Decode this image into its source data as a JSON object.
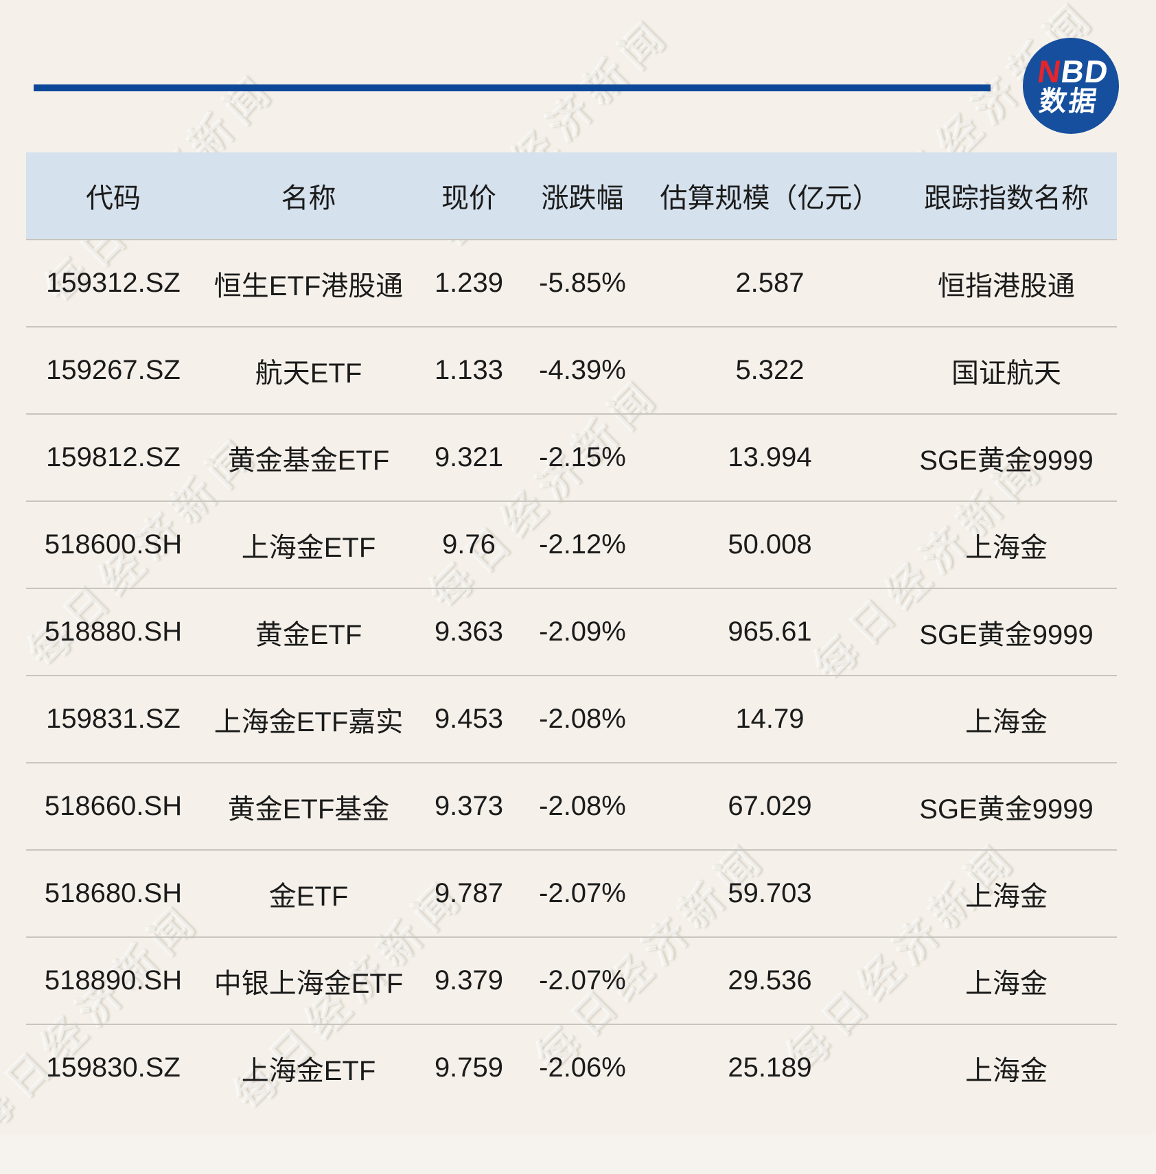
{
  "logo": {
    "nbd_red": "N",
    "nbd_rest": "BD",
    "line2": "数据"
  },
  "watermark": {
    "text": "每日经济新闻"
  },
  "chart_data": {
    "type": "table",
    "title": "",
    "columns": [
      "代码",
      "名称",
      "现价",
      "涨跌幅",
      "估算规模（亿元）",
      "跟踪指数名称"
    ],
    "rows": [
      [
        "159312.SZ",
        "恒生ETF港股通",
        "1.239",
        "-5.85%",
        "2.587",
        "恒指港股通"
      ],
      [
        "159267.SZ",
        "航天ETF",
        "1.133",
        "-4.39%",
        "5.322",
        "国证航天"
      ],
      [
        "159812.SZ",
        "黄金基金ETF",
        "9.321",
        "-2.15%",
        "13.994",
        "SGE黄金9999"
      ],
      [
        "518600.SH",
        "上海金ETF",
        "9.76",
        "-2.12%",
        "50.008",
        "上海金"
      ],
      [
        "518880.SH",
        "黄金ETF",
        "9.363",
        "-2.09%",
        "965.61",
        "SGE黄金9999"
      ],
      [
        "159831.SZ",
        "上海金ETF嘉实",
        "9.453",
        "-2.08%",
        "14.79",
        "上海金"
      ],
      [
        "518660.SH",
        "黄金ETF基金",
        "9.373",
        "-2.08%",
        "67.029",
        "SGE黄金9999"
      ],
      [
        "518680.SH",
        "金ETF",
        "9.787",
        "-2.07%",
        "59.703",
        "上海金"
      ],
      [
        "518890.SH",
        "中银上海金ETF",
        "9.379",
        "-2.07%",
        "29.536",
        "上海金"
      ],
      [
        "159830.SZ",
        "上海金ETF",
        "9.759",
        "-2.06%",
        "25.189",
        "上海金"
      ]
    ]
  },
  "colors": {
    "background": "#f5f1ea",
    "header_bg": "#d5e1ed",
    "accent_blue": "#0d4797",
    "logo_blue": "#164f9e",
    "logo_red": "#e4252c",
    "separator": "#c8c4be",
    "text": "#1b1b1b"
  }
}
